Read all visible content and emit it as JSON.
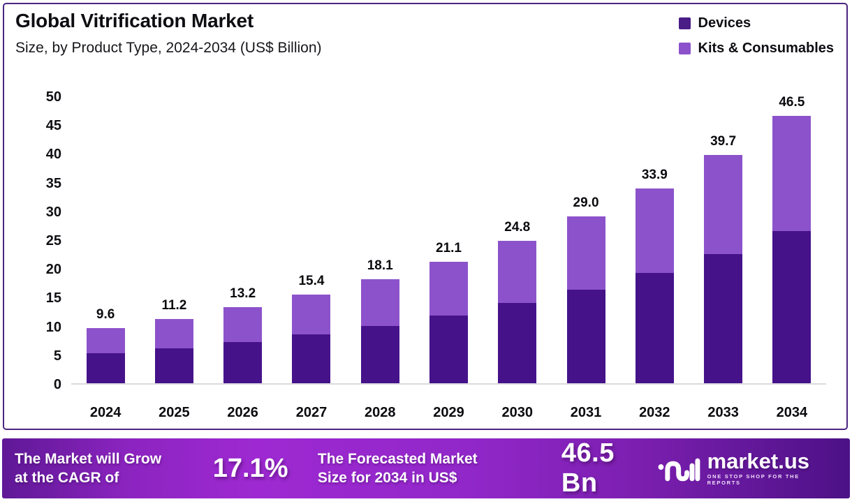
{
  "header": {
    "title": "Global Vitrification Market",
    "subtitle": "Size, by Product Type, 2024-2034 (US$ Billion)"
  },
  "legend": [
    {
      "label": "Devices",
      "color": "#4a1d87"
    },
    {
      "label": "Kits & Consumables",
      "color": "#8c52cb"
    }
  ],
  "chart_data": {
    "type": "bar",
    "stacked": true,
    "title": "Global Vitrification Market Size, by Product Type, 2024-2034 (US$ Billion)",
    "categories": [
      "2024",
      "2025",
      "2026",
      "2027",
      "2028",
      "2029",
      "2030",
      "2031",
      "2032",
      "2033",
      "2034"
    ],
    "series": [
      {
        "name": "Devices",
        "color": "#45128a",
        "values": [
          5.2,
          6.1,
          7.2,
          8.5,
          10.0,
          11.8,
          13.9,
          16.3,
          19.2,
          22.4,
          26.4
        ]
      },
      {
        "name": "Kits & Consumables",
        "color": "#8c52cb",
        "values": [
          4.4,
          5.1,
          6.0,
          6.9,
          8.1,
          9.3,
          10.9,
          12.7,
          14.7,
          17.3,
          20.1
        ]
      }
    ],
    "totals": [
      9.6,
      11.2,
      13.2,
      15.4,
      18.1,
      21.1,
      24.8,
      29.0,
      33.9,
      39.7,
      46.5
    ],
    "total_labels": [
      "9.6",
      "11.2",
      "13.2",
      "15.4",
      "18.1",
      "21.1",
      "24.8",
      "29.0",
      "33.9",
      "39.7",
      "46.5"
    ],
    "y_ticks": [
      0,
      5,
      10,
      15,
      20,
      25,
      30,
      35,
      40,
      45,
      50
    ],
    "ylim": [
      0,
      50
    ],
    "xlabel": "",
    "ylabel": "",
    "grid": false,
    "legend_position": "top-right"
  },
  "footer": {
    "cagr_line1": "The Market will Grow",
    "cagr_line2": "at the CAGR of",
    "cagr_value": "17.1%",
    "forecast_line1": "The Forecasted Market",
    "forecast_line2": "Size for 2034 in US$",
    "forecast_value": "46.5 Bn",
    "brand": {
      "name": "market.us",
      "tagline": "ONE STOP SHOP FOR THE REPORTS"
    }
  }
}
